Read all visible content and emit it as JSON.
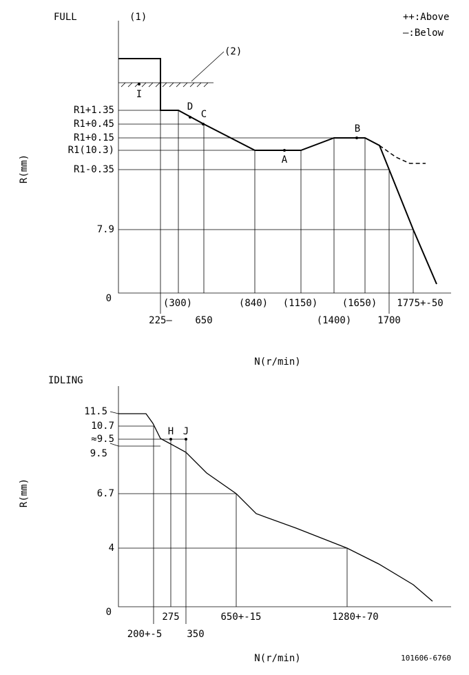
{
  "full": {
    "title": "FULL",
    "mark1": "(1)",
    "legend_above": "++:Above",
    "legend_below": "—:Below",
    "mark2": "(2)",
    "points": {
      "i": "I",
      "d": "D",
      "c": "C",
      "b": "B",
      "a": "A"
    },
    "y_labels": [
      "R1+1.35",
      "R1+0.45",
      "R1+0.15",
      "R1(10.3)",
      "R1-0.35",
      "7.9",
      "0"
    ],
    "x_labels_row1": [
      "(300)",
      "(840)",
      "(1150)",
      "(1650)",
      "1775+-50"
    ],
    "x_labels_row2": [
      "225—",
      "650",
      "(1400)",
      "1700"
    ],
    "y_axis": "R(mm)",
    "x_axis": "N(r/min)"
  },
  "idling": {
    "title": "IDLING",
    "points": {
      "h": "H",
      "j": "J"
    },
    "y_labels": [
      "11.5",
      "10.7",
      "≈9.5",
      "9.5",
      "6.7",
      "4",
      "0"
    ],
    "x_labels_row1": [
      "275",
      "650+-15",
      "1280+-70"
    ],
    "x_labels_row2": [
      "200+-5",
      "350"
    ],
    "y_axis": "R(mm)",
    "x_axis": "N(r/min)"
  },
  "drawing_number": "101606-6760"
}
